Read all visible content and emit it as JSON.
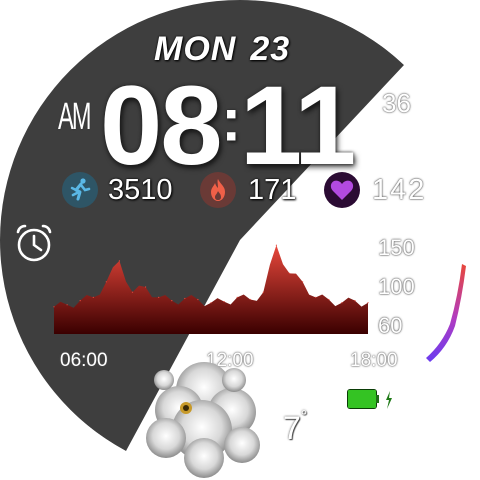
{
  "date": {
    "weekday": "MON",
    "day": "23"
  },
  "time": {
    "ampm": "AM",
    "hours": "08",
    "separator": ":",
    "minutes": "11",
    "seconds": "36"
  },
  "stats": [
    {
      "icon": "running-person-icon",
      "value": "3510",
      "color": "#5ab8e6"
    },
    {
      "icon": "flame-icon",
      "value": "171",
      "color": "#f06048"
    },
    {
      "icon": "heart-icon",
      "value": "142",
      "color": "#b24ae0"
    }
  ],
  "heart_chart": {
    "y_labels": [
      "150",
      "100",
      "60"
    ],
    "x_labels": [
      "06:00",
      "12:00",
      "18:00"
    ],
    "colors": {
      "top": "#e8473b",
      "bottom": "#3a0000"
    }
  },
  "chart_data": {
    "type": "area",
    "x": [
      "06:00",
      "06:30",
      "07:00",
      "07:30",
      "08:00",
      "08:30",
      "09:00",
      "09:30",
      "10:00",
      "10:30",
      "11:00",
      "11:30",
      "12:00",
      "12:30",
      "13:00",
      "13:30",
      "14:00",
      "14:30",
      "15:00",
      "15:30",
      "16:00",
      "16:30",
      "17:00",
      "17:30",
      "18:00"
    ],
    "values": [
      86,
      88,
      92,
      95,
      110,
      130,
      100,
      105,
      95,
      92,
      94,
      93,
      90,
      91,
      95,
      93,
      100,
      145,
      118,
      110,
      95,
      93,
      90,
      92,
      90
    ],
    "xlabel": "",
    "ylabel": "",
    "ylim": [
      60,
      150
    ],
    "y_ticks": [
      150,
      100,
      60
    ],
    "x_ticks": [
      "06:00",
      "12:00",
      "18:00"
    ],
    "grid": false
  },
  "gauge": {
    "colors": [
      "#6a3cf0",
      "#b23cc0",
      "#e8473b"
    ],
    "level": 0.85
  },
  "battery": {
    "color": "#34c323",
    "level": 1.0
  },
  "weather": {
    "icon": "cloudy-night-icon",
    "temperature": "7",
    "unit": "°"
  }
}
